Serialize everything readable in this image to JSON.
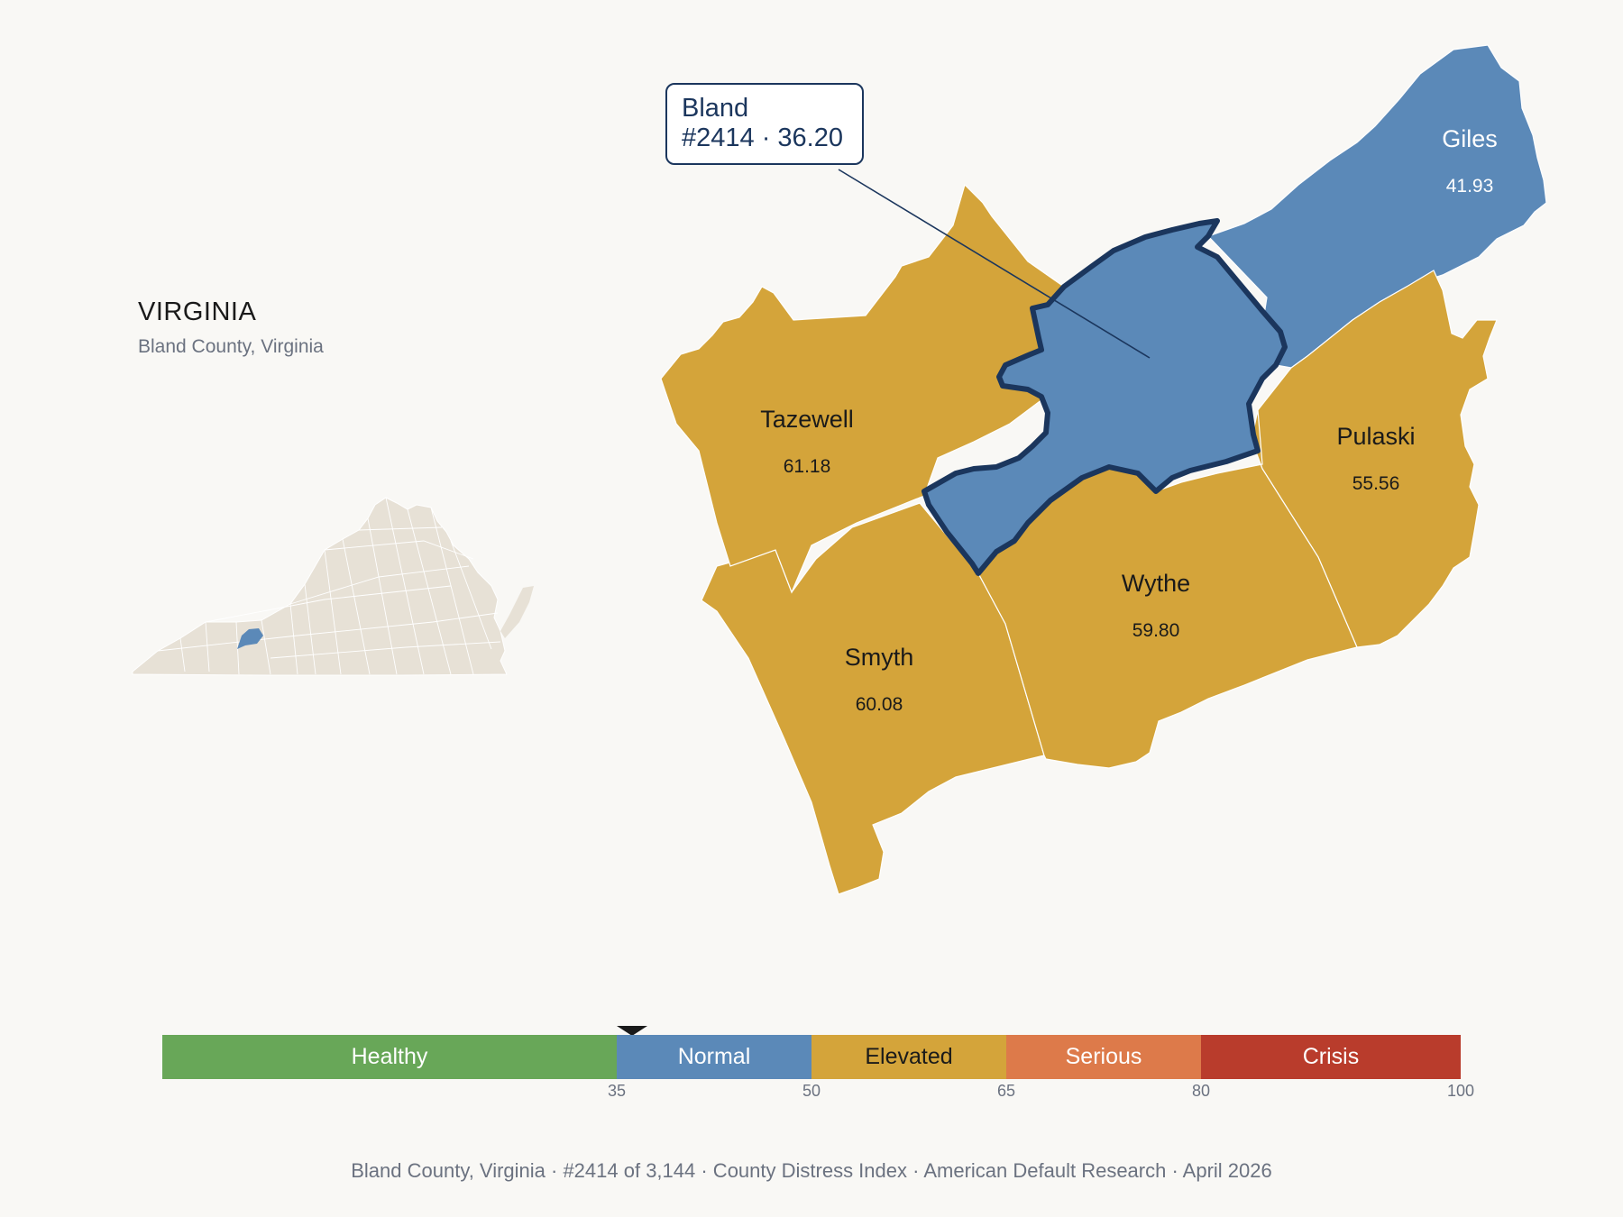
{
  "state": {
    "name": "VIRGINIA",
    "subtitle": "Bland County, Virginia"
  },
  "callout": {
    "county": "Bland",
    "rank_score": "#2414 · 36.20"
  },
  "counties": [
    {
      "name": "Giles",
      "value": "41.93",
      "category": "Normal",
      "color": "#5b89b8"
    },
    {
      "name": "Tazewell",
      "value": "61.18",
      "category": "Elevated",
      "color": "#d4a43a"
    },
    {
      "name": "Pulaski",
      "value": "55.56",
      "category": "Elevated",
      "color": "#d4a43a"
    },
    {
      "name": "Wythe",
      "value": "59.80",
      "category": "Elevated",
      "color": "#d4a43a"
    },
    {
      "name": "Smyth",
      "value": "60.08",
      "category": "Elevated",
      "color": "#d4a43a"
    }
  ],
  "focus": {
    "name": "Bland",
    "value": 36.2,
    "color": "#5b89b8",
    "outline": "#1b365d"
  },
  "legend": {
    "segments": [
      {
        "label": "Healthy",
        "from": 0,
        "to": 35,
        "color": "#68a758"
      },
      {
        "label": "Normal",
        "from": 35,
        "to": 50,
        "color": "#5b89b8"
      },
      {
        "label": "Elevated",
        "from": 50,
        "to": 65,
        "color": "#d4a43a"
      },
      {
        "label": "Serious",
        "from": 65,
        "to": 80,
        "color": "#dd7a4a"
      },
      {
        "label": "Crisis",
        "from": 80,
        "to": 100,
        "color": "#b93c2c"
      }
    ],
    "ticks": [
      "35",
      "50",
      "65",
      "80",
      "100"
    ],
    "marker_value": 36.2
  },
  "footer": "Bland County, Virginia  ·  #2414 of 3,144  ·  County Distress Index  ·  American Default Research  ·  April 2026"
}
